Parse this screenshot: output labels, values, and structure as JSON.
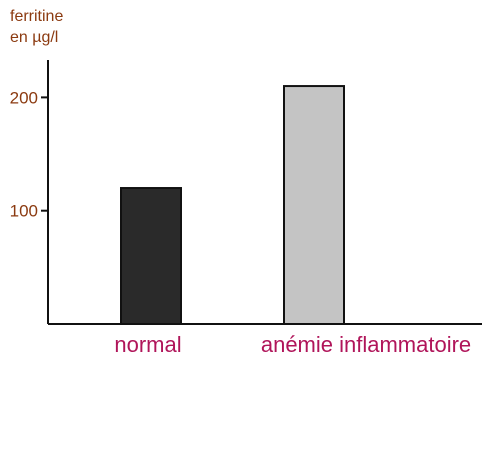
{
  "chart_data": {
    "type": "bar",
    "ylabel": [
      "ferritine",
      "en µg/l"
    ],
    "xlabel": "",
    "categories": [
      "normal",
      "anémie inflammatoire"
    ],
    "values": [
      120,
      210
    ],
    "ylim": [
      0,
      233
    ],
    "yticks": [
      100,
      200
    ],
    "grid": false,
    "legend": "none",
    "colors": {
      "bars": [
        "#2a2a2a",
        "#c4c4c4"
      ],
      "bar_outline": "#111111",
      "axis": "#111111",
      "tick_labels": "#8b3a10",
      "axis_title": "#8b3a10",
      "category_labels": "#b0155a"
    }
  }
}
